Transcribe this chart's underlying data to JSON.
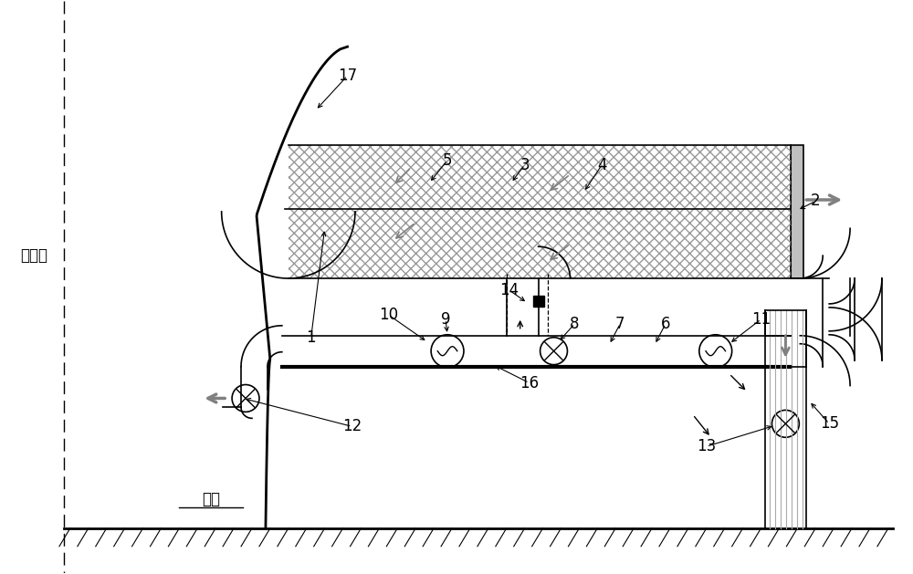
{
  "bg_color": "#ffffff",
  "line_color": "#000000",
  "gray_color": "#808080",
  "symmetry_axis_label": "对称轴",
  "ground_label": "地面",
  "fig_width": 10.0,
  "fig_height": 6.29,
  "dpi": 100
}
